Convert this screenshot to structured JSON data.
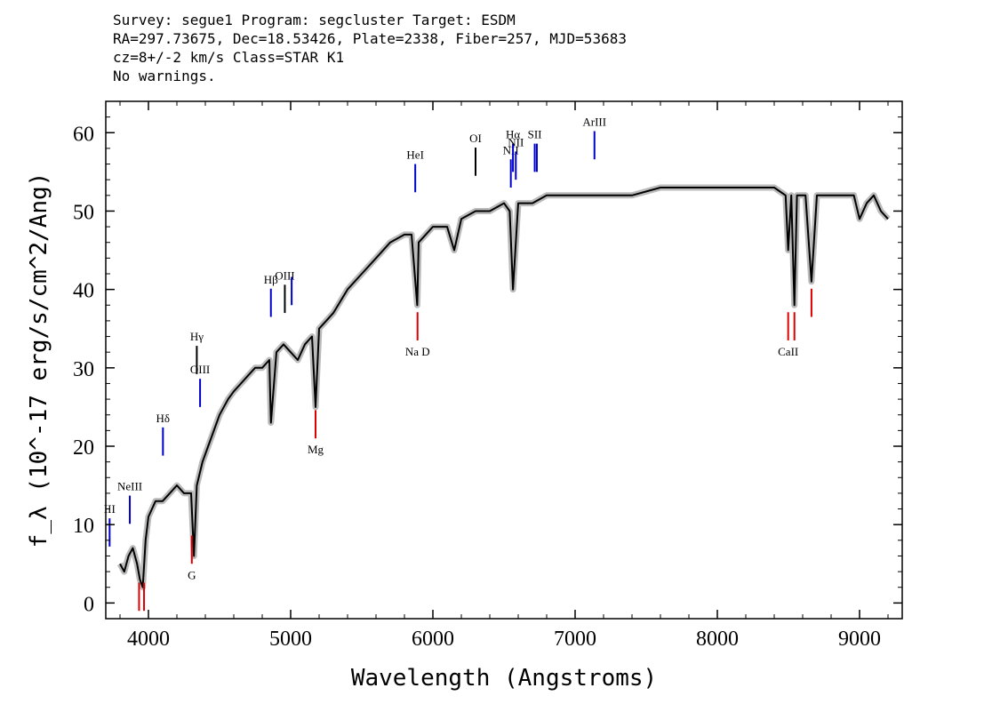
{
  "header": {
    "line1": "Survey: segue1 Program: segcluster Target: ESDM",
    "line2": "RA=297.73675, Dec=18.53426, Plate=2338, Fiber=257, MJD=53683",
    "line3": "cz=8+/-2 km/s Class=STAR K1",
    "line4": "No warnings."
  },
  "chart_data": {
    "type": "line",
    "title": "",
    "xlabel": "Wavelength (Angstroms)",
    "ylabel": "f_λ (10^-17 erg/s/cm^2/Ang)",
    "xlim": [
      3700,
      9300
    ],
    "ylim": [
      -2,
      64
    ],
    "xticks": [
      4000,
      5000,
      6000,
      7000,
      8000,
      9000
    ],
    "yticks": [
      0,
      10,
      20,
      30,
      40,
      50,
      60
    ],
    "colors": {
      "spectrum": "#000000",
      "error_band": "#bbbbbb",
      "emission": "#0000cc",
      "absorption": "#dd0000",
      "neutral": "#000000"
    },
    "series": [
      {
        "x": [
          3800,
          3830,
          3860,
          3890,
          3920,
          3940,
          3960,
          3980,
          4000,
          4050,
          4100,
          4150,
          4200,
          4250,
          4300,
          4320,
          4340,
          4380,
          4420,
          4460,
          4500,
          4560,
          4600,
          4650,
          4700,
          4750,
          4800,
          4850,
          4861,
          4900,
          4950,
          5000,
          5050,
          5100,
          5150,
          5175,
          5200,
          5250,
          5300,
          5400,
          5500,
          5600,
          5700,
          5800,
          5850,
          5890,
          5900,
          5950,
          6000,
          6100,
          6150,
          6200,
          6300,
          6400,
          6500,
          6540,
          6563,
          6600,
          6700,
          6800,
          7000,
          7200,
          7400,
          7600,
          7800,
          8000,
          8200,
          8400,
          8480,
          8498,
          8520,
          8542,
          8560,
          8620,
          8662,
          8700,
          8800,
          8900,
          8960,
          9000,
          9050,
          9100,
          9150,
          9200
        ],
        "y": [
          5,
          4,
          6,
          7,
          5,
          3,
          2,
          8,
          11,
          13,
          13,
          14,
          15,
          14,
          14,
          6,
          15,
          18,
          20,
          22,
          24,
          26,
          27,
          28,
          29,
          30,
          30,
          31,
          23,
          32,
          33,
          32,
          31,
          33,
          34,
          25,
          35,
          36,
          37,
          40,
          42,
          44,
          46,
          47,
          47,
          38,
          46,
          47,
          48,
          48,
          45,
          49,
          50,
          50,
          51,
          50,
          40,
          51,
          51,
          52,
          52,
          52,
          52,
          53,
          53,
          53,
          53,
          53,
          52,
          45,
          52,
          38,
          52,
          52,
          41,
          52,
          52,
          52,
          52,
          49,
          51,
          52,
          50,
          49
        ]
      }
    ],
    "lines": [
      {
        "label": "NeIII",
        "wavelength": 3869,
        "value": 10.1,
        "kind": "emission"
      },
      {
        "label": "III",
        "wavelength": 3727,
        "value": 7.2,
        "kind": "emission"
      },
      {
        "label": "Hδ",
        "wavelength": 4102,
        "value": 18.8,
        "kind": "emission"
      },
      {
        "label": "Hγ",
        "wavelength": 4340,
        "value": 29.2,
        "kind": "neutral"
      },
      {
        "label": "OIII",
        "wavelength": 4363,
        "value": 25.0,
        "kind": "emission"
      },
      {
        "label": "Hβ",
        "wavelength": 4861,
        "value": 36.5,
        "kind": "emission"
      },
      {
        "label": "OIII",
        "wavelength": 4959,
        "value": 37.0,
        "kind": "neutral"
      },
      {
        "label": "",
        "wavelength": 5007,
        "value": 38.0,
        "kind": "emission"
      },
      {
        "label": "HeI",
        "wavelength": 5876,
        "value": 52.4,
        "kind": "emission"
      },
      {
        "label": "OI",
        "wavelength": 6300,
        "value": 54.5,
        "kind": "neutral"
      },
      {
        "label": "NII",
        "wavelength": 6548,
        "value": 53.0,
        "kind": "emission"
      },
      {
        "label": "Hα",
        "wavelength": 6563,
        "value": 55.0,
        "kind": "emission"
      },
      {
        "label": "NII",
        "wavelength": 6583,
        "value": 54.0,
        "kind": "emission"
      },
      {
        "label": "SII",
        "wavelength": 6716,
        "value": 55.0,
        "kind": "emission"
      },
      {
        "label": "",
        "wavelength": 6731,
        "value": 55.0,
        "kind": "emission"
      },
      {
        "label": "ArIII",
        "wavelength": 7136,
        "value": 56.6,
        "kind": "emission"
      },
      {
        "label": "",
        "wavelength": 3934,
        "value": -1.0,
        "kind": "absorption"
      },
      {
        "label": "",
        "wavelength": 3969,
        "value": -1.0,
        "kind": "absorption"
      },
      {
        "label": "G",
        "wavelength": 4305,
        "value": 5.0,
        "kind": "absorption"
      },
      {
        "label": "Mg",
        "wavelength": 5175,
        "value": 21.0,
        "kind": "absorption"
      },
      {
        "label": "Na D",
        "wavelength": 5892,
        "value": 33.5,
        "kind": "absorption"
      },
      {
        "label": "CaII",
        "wavelength": 8498,
        "value": 33.5,
        "kind": "absorption"
      },
      {
        "label": "",
        "wavelength": 8542,
        "value": 33.5,
        "kind": "absorption"
      },
      {
        "label": "",
        "wavelength": 8662,
        "value": 36.5,
        "kind": "absorption"
      }
    ]
  }
}
